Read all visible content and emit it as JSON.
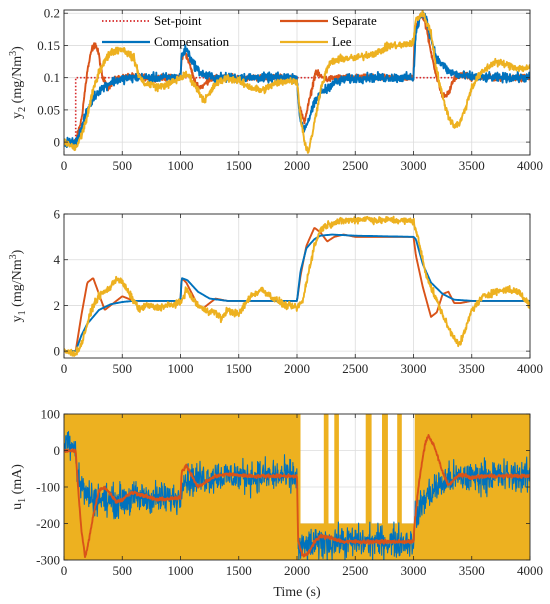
{
  "colors": {
    "setpoint": "#d62728",
    "separate": "#d95319",
    "compensation": "#0072bd",
    "lee": "#edb120",
    "grid": "#dcdcdc",
    "axis": "#262626"
  },
  "legend": [
    {
      "name": "Set-point",
      "style": "dotted",
      "color": "#d62728"
    },
    {
      "name": "Separate",
      "style": "solid",
      "color": "#d95319"
    },
    {
      "name": "Compensation",
      "style": "solid",
      "color": "#0072bd"
    },
    {
      "name": "Lee",
      "style": "solid",
      "color": "#edb120"
    }
  ],
  "xlabel": "Time (s)",
  "chart_data": [
    {
      "type": "line",
      "ylabel_main": "y",
      "ylabel_sub": "2",
      "ylabel_unit": " (mg/Nm",
      "ylabel_sup": "3",
      "ylabel_end": ")",
      "xlim": [
        0,
        4000
      ],
      "ylim": [
        -0.02,
        0.205
      ],
      "xticks": [
        0,
        500,
        1000,
        1500,
        2000,
        2500,
        3000,
        3500,
        4000
      ],
      "yticks": [
        0,
        0.05,
        0.1,
        0.15,
        0.2
      ],
      "ytick_labels": [
        "0",
        "0.05",
        "0.1",
        "0.15",
        "0.2"
      ],
      "grid": true,
      "legend_position": "top",
      "series": [
        {
          "name": "Set-point",
          "style": "dotted",
          "x": [
            0,
            100,
            100,
            4000
          ],
          "y": [
            0,
            0,
            0.1,
            0.1
          ]
        },
        {
          "name": "Separate",
          "noise": 0.004,
          "x": [
            0,
            100,
            150,
            200,
            240,
            270,
            300,
            330,
            380,
            450,
            550,
            700,
            1000,
            1010,
            1040,
            1080,
            1120,
            1160,
            1200,
            1250,
            1350,
            1500,
            2000,
            2015,
            2060,
            2120,
            2160,
            2200,
            2260,
            2320,
            2500,
            3000,
            3010,
            3060,
            3100,
            3150,
            3200,
            3250,
            3300,
            3350,
            3420,
            3500,
            4000
          ],
          "y": [
            0,
            0,
            0.035,
            0.11,
            0.145,
            0.152,
            0.135,
            0.1,
            0.085,
            0.098,
            0.102,
            0.1,
            0.1,
            0.13,
            0.14,
            0.12,
            0.095,
            0.085,
            0.088,
            0.098,
            0.1,
            0.1,
            0.1,
            0.06,
            0.03,
            0.075,
            0.11,
            0.102,
            0.097,
            0.1,
            0.1,
            0.1,
            0.17,
            0.2,
            0.185,
            0.14,
            0.1,
            0.07,
            0.075,
            0.1,
            0.105,
            0.1,
            0.1
          ]
        },
        {
          "name": "Compensation",
          "noise": 0.006,
          "x": [
            0,
            100,
            150,
            200,
            250,
            300,
            400,
            500,
            600,
            800,
            1000,
            1010,
            1050,
            1100,
            1150,
            1200,
            1300,
            1500,
            2000,
            2020,
            2060,
            2100,
            2150,
            2200,
            2300,
            2400,
            2600,
            3000,
            3020,
            3060,
            3100,
            3150,
            3200,
            3300,
            3400,
            3600,
            4000
          ],
          "y": [
            0,
            0,
            0.02,
            0.05,
            0.068,
            0.08,
            0.093,
            0.098,
            0.1,
            0.1,
            0.1,
            0.135,
            0.145,
            0.125,
            0.112,
            0.104,
            0.1,
            0.1,
            0.1,
            0.04,
            0.02,
            0.035,
            0.06,
            0.075,
            0.09,
            0.097,
            0.1,
            0.1,
            0.17,
            0.195,
            0.198,
            0.16,
            0.13,
            0.11,
            0.103,
            0.1,
            0.1
          ]
        },
        {
          "name": "Lee",
          "noise": 0.005,
          "x": [
            0,
            100,
            150,
            200,
            250,
            300,
            400,
            500,
            600,
            650,
            700,
            750,
            800,
            900,
            1000,
            1060,
            1100,
            1150,
            1200,
            1250,
            1300,
            1400,
            1500,
            1600,
            1700,
            1800,
            1900,
            2000,
            2030,
            2070,
            2100,
            2150,
            2200,
            2260,
            2300,
            2400,
            2500,
            2600,
            2700,
            2800,
            2900,
            3000,
            3020,
            3080,
            3150,
            3200,
            3250,
            3300,
            3350,
            3400,
            3450,
            3500,
            3550,
            3600,
            3700,
            3800,
            3900,
            4000
          ],
          "y": [
            0,
            -0.01,
            0.01,
            0.04,
            0.08,
            0.11,
            0.14,
            0.145,
            0.13,
            0.1,
            0.09,
            0.09,
            0.085,
            0.09,
            0.1,
            0.105,
            0.095,
            0.08,
            0.065,
            0.075,
            0.09,
            0.1,
            0.095,
            0.085,
            0.08,
            0.09,
            0.095,
            0.095,
            0.04,
            -0.005,
            -0.015,
            0.03,
            0.08,
            0.115,
            0.125,
            0.13,
            0.13,
            0.135,
            0.14,
            0.15,
            0.15,
            0.155,
            0.19,
            0.2,
            0.17,
            0.11,
            0.07,
            0.04,
            0.025,
            0.03,
            0.055,
            0.085,
            0.1,
            0.11,
            0.125,
            0.12,
            0.115,
            0.115
          ]
        }
      ]
    },
    {
      "type": "line",
      "ylabel_main": "y",
      "ylabel_sub": "1",
      "ylabel_unit": " (mg/Nm",
      "ylabel_sup": "3",
      "ylabel_end": ")",
      "xlim": [
        0,
        4000
      ],
      "ylim": [
        -0.3,
        6
      ],
      "xticks": [
        0,
        500,
        1000,
        1500,
        2000,
        2500,
        3000,
        3500,
        4000
      ],
      "yticks": [
        0,
        2,
        4,
        6
      ],
      "ytick_labels": [
        "0",
        "2",
        "4",
        "6"
      ],
      "grid": true,
      "series": [
        {
          "name": "Separate",
          "noise": 0,
          "x": [
            0,
            100,
            150,
            200,
            250,
            300,
            350,
            400,
            500,
            600,
            800,
            1000,
            1010,
            1050,
            1100,
            1150,
            1200,
            1250,
            1300,
            1400,
            1600,
            2000,
            2030,
            2080,
            2150,
            2200,
            2260,
            2320,
            2400,
            2500,
            3000,
            3020,
            3080,
            3150,
            3200,
            3250,
            3300,
            3350,
            3400,
            3500,
            4000
          ],
          "y": [
            0,
            0,
            1.6,
            3.0,
            3.2,
            2.5,
            1.8,
            2.0,
            2.4,
            2.2,
            2.2,
            2.2,
            3.2,
            3.0,
            2.5,
            2.0,
            1.9,
            2.1,
            2.3,
            2.2,
            2.2,
            2.2,
            3.3,
            4.6,
            5.4,
            5.2,
            4.8,
            5.0,
            5.1,
            5.0,
            5.0,
            4.2,
            2.8,
            1.5,
            1.7,
            2.5,
            2.6,
            2.1,
            2.1,
            2.2,
            2.2
          ]
        },
        {
          "name": "Compensation",
          "noise": 0,
          "x": [
            0,
            100,
            150,
            200,
            300,
            400,
            500,
            600,
            800,
            1000,
            1010,
            1060,
            1150,
            1250,
            1400,
            2000,
            2030,
            2080,
            2150,
            2200,
            2300,
            2500,
            3000,
            3020,
            3080,
            3150,
            3250,
            3350,
            3500,
            4000
          ],
          "y": [
            0,
            0,
            0.7,
            1.2,
            1.8,
            2.05,
            2.15,
            2.2,
            2.2,
            2.2,
            3.2,
            3.1,
            2.6,
            2.3,
            2.2,
            2.2,
            3.5,
            4.5,
            4.9,
            5.05,
            5.1,
            5.05,
            5.0,
            4.9,
            3.8,
            3.0,
            2.5,
            2.25,
            2.2,
            2.2
          ]
        },
        {
          "name": "Lee",
          "noise": 0.13,
          "x": [
            0,
            100,
            150,
            200,
            250,
            300,
            400,
            450,
            500,
            550,
            600,
            650,
            700,
            800,
            900,
            1000,
            1050,
            1100,
            1150,
            1200,
            1300,
            1350,
            1400,
            1500,
            1600,
            1700,
            1800,
            1900,
            2000,
            2050,
            2100,
            2150,
            2200,
            2250,
            2300,
            2400,
            2500,
            2600,
            2700,
            2800,
            2900,
            3000,
            3050,
            3100,
            3150,
            3200,
            3250,
            3300,
            3350,
            3400,
            3450,
            3500,
            3600,
            3700,
            3800,
            3900,
            4000
          ],
          "y": [
            0,
            -0.1,
            0.3,
            1.2,
            2.0,
            2.4,
            2.8,
            3.2,
            3.0,
            2.6,
            2.2,
            1.8,
            2.0,
            1.9,
            2.0,
            2.1,
            2.7,
            2.3,
            2.0,
            1.8,
            1.7,
            1.4,
            1.8,
            1.6,
            2.4,
            2.7,
            2.3,
            2.0,
            1.9,
            2.2,
            3.5,
            4.6,
            5.3,
            5.5,
            5.6,
            5.7,
            5.75,
            5.8,
            5.7,
            5.75,
            5.7,
            5.7,
            4.7,
            3.5,
            2.8,
            2.2,
            1.6,
            1.0,
            0.6,
            0.3,
            1.0,
            1.8,
            2.4,
            2.6,
            2.7,
            2.6,
            2.0
          ]
        }
      ]
    },
    {
      "type": "line",
      "ylabel_main": "u",
      "ylabel_sub": "1",
      "ylabel_unit": " (mA)",
      "ylabel_sup": "",
      "ylabel_end": "",
      "xlim": [
        0,
        4000
      ],
      "ylim": [
        -300,
        100
      ],
      "xticks": [
        0,
        500,
        1000,
        1500,
        2000,
        2500,
        3000,
        3500,
        4000
      ],
      "yticks": [
        -300,
        -200,
        -100,
        0,
        100
      ],
      "ytick_labels": [
        "-300",
        "-200",
        "-100",
        "0",
        "100"
      ],
      "grid": true,
      "series": [
        {
          "name": "Lee",
          "band": true,
          "x": [
            0,
            2030,
            2030,
            2230,
            2230,
            2270,
            2270,
            2320,
            2320,
            2360,
            2360,
            2590,
            2590,
            2640,
            2640,
            2730,
            2730,
            2780,
            2780,
            2860,
            2860,
            2900,
            2900,
            3010,
            3010,
            4000
          ],
          "top": [
            100,
            100,
            -200,
            -200,
            100,
            100,
            -200,
            -200,
            100,
            100,
            -200,
            -200,
            100,
            100,
            -200,
            -200,
            100,
            100,
            -200,
            -200,
            100,
            100,
            -200,
            -200,
            100,
            100
          ],
          "bottom": [
            -300,
            -300,
            -300,
            -300,
            -300,
            -300,
            -300,
            -300,
            -300,
            -300,
            -300,
            -300,
            -300,
            -300,
            -300,
            -300,
            -300,
            -300,
            -300,
            -300,
            -300,
            -300,
            -300,
            -300,
            -300,
            -300
          ]
        },
        {
          "name": "Compensation",
          "noise": 38,
          "x": [
            0,
            50,
            100,
            110,
            150,
            200,
            250,
            300,
            400,
            500,
            600,
            800,
            1000,
            1010,
            1100,
            1300,
            1500,
            2000,
            2010,
            2100,
            2300,
            2500,
            3000,
            3010,
            3100,
            3200,
            3300,
            3400,
            3600,
            4000
          ],
          "y": [
            20,
            30,
            10,
            -60,
            -100,
            -120,
            -130,
            -130,
            -140,
            -135,
            -130,
            -130,
            -130,
            -75,
            -80,
            -70,
            -70,
            -70,
            -270,
            -260,
            -250,
            -250,
            -250,
            -190,
            -130,
            -100,
            -80,
            -75,
            -70,
            -70
          ]
        },
        {
          "name": "Separate",
          "noise": 4,
          "x": [
            0,
            100,
            120,
            150,
            180,
            200,
            250,
            300,
            350,
            400,
            450,
            500,
            550,
            600,
            700,
            800,
            1000,
            1010,
            1050,
            1100,
            1150,
            1200,
            1300,
            1400,
            1600,
            2000,
            2010,
            2050,
            2100,
            2150,
            2200,
            2300,
            2400,
            2500,
            2700,
            3000,
            3010,
            3050,
            3100,
            3130,
            3180,
            3250,
            3300,
            3350,
            3400,
            3500,
            3600,
            4000
          ],
          "y": [
            0,
            0,
            -100,
            -220,
            -290,
            -270,
            -180,
            -110,
            -100,
            -120,
            -140,
            -135,
            -120,
            -115,
            -125,
            -135,
            -130,
            -60,
            -40,
            -70,
            -100,
            -90,
            -70,
            -65,
            -70,
            -70,
            -250,
            -290,
            -280,
            -250,
            -235,
            -240,
            -250,
            -250,
            -250,
            -250,
            -200,
            -80,
            20,
            40,
            10,
            -60,
            -95,
            -80,
            -65,
            -75,
            -70,
            -70
          ]
        }
      ]
    }
  ]
}
